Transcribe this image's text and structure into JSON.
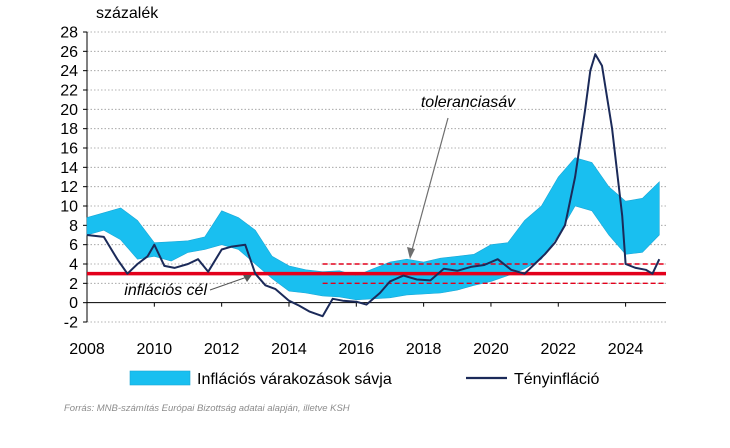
{
  "chart_data": {
    "type": "line",
    "ylabel": "százalék",
    "xlim": [
      2008,
      2025.2
    ],
    "ylim": [
      -2,
      28
    ],
    "yticks": [
      -2,
      0,
      2,
      4,
      6,
      8,
      10,
      12,
      14,
      16,
      18,
      20,
      22,
      24,
      26,
      28
    ],
    "xticks": [
      2008,
      2010,
      2012,
      2014,
      2016,
      2018,
      2020,
      2022,
      2024
    ],
    "grid": "horizontal dotted",
    "legend_position": "bottom",
    "inflation_target": 3,
    "tolerance_band": {
      "lower": 2,
      "upper": 4,
      "start": 2015
    },
    "annotations": {
      "target_label": "inflációs cél",
      "band_label": "toleranciasáv"
    },
    "series": [
      {
        "name": "Inflációs várakozások sávja",
        "type": "area",
        "color": "#19bff0",
        "x": [
          2008.0,
          2008.5,
          2009.0,
          2009.5,
          2010.0,
          2010.5,
          2011.0,
          2011.5,
          2012.0,
          2012.5,
          2013.0,
          2013.5,
          2014.0,
          2014.5,
          2015.0,
          2015.5,
          2016.0,
          2016.5,
          2017.0,
          2017.5,
          2018.0,
          2018.5,
          2019.0,
          2019.5,
          2020.0,
          2020.5,
          2021.0,
          2021.5,
          2022.0,
          2022.5,
          2023.0,
          2023.5,
          2024.0,
          2024.5,
          2025.0
        ],
        "upper": [
          8.8,
          9.3,
          9.8,
          8.5,
          6.2,
          6.3,
          6.4,
          6.8,
          9.5,
          8.8,
          7.5,
          4.8,
          3.8,
          3.4,
          3.2,
          3.3,
          2.8,
          3.5,
          4.2,
          4.5,
          4.2,
          4.6,
          4.8,
          5.0,
          6.0,
          6.2,
          8.5,
          10.0,
          13.0,
          15.0,
          14.5,
          12.0,
          10.5,
          10.8,
          12.5
        ],
        "lower": [
          7.0,
          7.5,
          6.5,
          4.5,
          4.8,
          4.3,
          5.2,
          5.5,
          6.0,
          5.5,
          4.0,
          2.5,
          1.2,
          1.0,
          0.7,
          0.6,
          0.3,
          0.4,
          0.5,
          0.8,
          0.9,
          1.0,
          1.3,
          1.8,
          2.2,
          2.8,
          3.5,
          4.5,
          7.0,
          10.0,
          9.5,
          7.0,
          5.0,
          5.2,
          7.0
        ]
      },
      {
        "name": "Tényinfláció",
        "type": "line",
        "color": "#1b2a59",
        "x": [
          2008.0,
          2008.5,
          2008.9,
          2009.2,
          2009.5,
          2009.8,
          2010.0,
          2010.3,
          2010.6,
          2011.0,
          2011.3,
          2011.6,
          2012.0,
          2012.3,
          2012.7,
          2013.0,
          2013.3,
          2013.6,
          2014.0,
          2014.3,
          2014.6,
          2015.0,
          2015.3,
          2015.6,
          2016.0,
          2016.3,
          2016.7,
          2017.0,
          2017.4,
          2017.8,
          2018.2,
          2018.6,
          2019.0,
          2019.4,
          2019.8,
          2020.2,
          2020.6,
          2021.0,
          2021.3,
          2021.6,
          2021.9,
          2022.2,
          2022.5,
          2022.8,
          2022.95,
          2023.1,
          2023.3,
          2023.6,
          2023.9,
          2024.0,
          2024.3,
          2024.6,
          2024.8,
          2025.0
        ],
        "values": [
          7.0,
          6.8,
          4.5,
          3.0,
          4.0,
          4.8,
          6.0,
          3.8,
          3.6,
          4.0,
          4.5,
          3.2,
          5.5,
          5.8,
          6.0,
          3.0,
          1.8,
          1.4,
          0.2,
          -0.3,
          -0.9,
          -1.4,
          0.4,
          0.2,
          0.1,
          -0.2,
          1.0,
          2.2,
          2.8,
          2.4,
          2.3,
          3.5,
          3.3,
          3.7,
          3.9,
          4.5,
          3.4,
          3.0,
          4.0,
          5.0,
          6.2,
          8.0,
          13.0,
          20.0,
          24.0,
          25.7,
          24.5,
          18.0,
          9.0,
          4.0,
          3.6,
          3.4,
          3.0,
          4.5
        ]
      }
    ]
  },
  "legend": {
    "band": "Inflációs várakozások sávja",
    "actual": "Tényinfláció"
  },
  "source": "Forrás: MNB-számítás Európai Bizottság adatai alapján, illetve KSH",
  "colors": {
    "band": "#19bff0",
    "actual": "#1b2a59",
    "target": "#e3001b",
    "tolerance": "#e3001b",
    "grid": "#9a9a9a",
    "axis": "#000000"
  }
}
